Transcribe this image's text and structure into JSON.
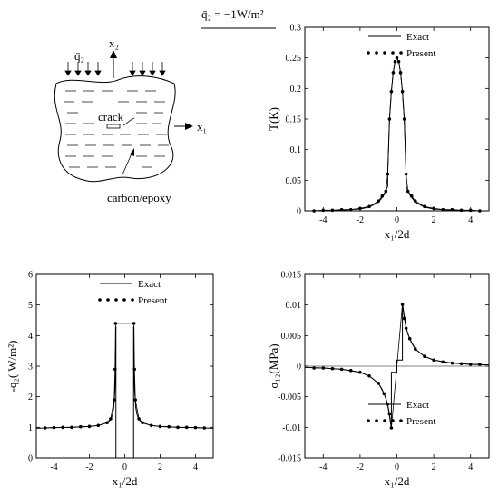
{
  "header_label": "q̄₂ = −1W/m²",
  "schematic": {
    "flux_label": "q̄₂",
    "x2_label": "x₂",
    "x1_label": "x₁",
    "crack_label": "crack",
    "material_label": "carbon/epoxy"
  },
  "chart_data": [
    {
      "type": "line",
      "xlabel": "x₁/2d",
      "ylabel": "T(K)",
      "xlim": [
        -5,
        5
      ],
      "ylim": [
        0,
        0.3
      ],
      "xticks": [
        -4,
        -2,
        0,
        2,
        4
      ],
      "yticks": [
        0,
        0.05,
        0.1,
        0.15,
        0.2,
        0.25,
        0.3
      ],
      "legend_position": "top-right",
      "series": [
        {
          "name": "Exact",
          "style": "solid",
          "x": [
            -4.5,
            -3,
            -2,
            -1.5,
            -1,
            -0.7,
            -0.5,
            -0.5,
            -0.4,
            -0.3,
            -0.2,
            -0.1,
            0,
            0.1,
            0.2,
            0.3,
            0.4,
            0.5,
            0.5,
            0.7,
            1,
            1.5,
            2,
            3,
            4.5
          ],
          "y": [
            0.0,
            0.001,
            0.003,
            0.006,
            0.014,
            0.026,
            0.04,
            0.06,
            0.15,
            0.195,
            0.226,
            0.244,
            0.25,
            0.244,
            0.226,
            0.195,
            0.15,
            0.06,
            0.04,
            0.026,
            0.014,
            0.006,
            0.003,
            0.001,
            0.0
          ]
        },
        {
          "name": "Present",
          "style": "dotted",
          "x": [
            -4.5,
            -4,
            -3.5,
            -3,
            -2.5,
            -2,
            -1.5,
            -1,
            -0.8,
            -0.6,
            -0.5,
            -0.4,
            -0.3,
            -0.2,
            -0.1,
            0,
            0.1,
            0.2,
            0.3,
            0.4,
            0.5,
            0.6,
            0.8,
            1,
            1.5,
            2,
            2.5,
            3,
            3.5,
            4,
            4.5
          ],
          "y": [
            0.0,
            0.001,
            0.001,
            0.002,
            0.002,
            0.004,
            0.007,
            0.016,
            0.024,
            0.032,
            0.06,
            0.15,
            0.195,
            0.226,
            0.244,
            0.25,
            0.244,
            0.226,
            0.195,
            0.15,
            0.06,
            0.032,
            0.024,
            0.016,
            0.007,
            0.004,
            0.002,
            0.002,
            0.001,
            0.001,
            0.0
          ]
        }
      ]
    },
    {
      "type": "line",
      "xlabel": "x₁/2d",
      "ylabel": "-q₂( W/m²)",
      "xlim": [
        -5,
        5
      ],
      "ylim": [
        0,
        6
      ],
      "xticks": [
        -4,
        -2,
        0,
        2,
        4
      ],
      "yticks": [
        0,
        1,
        2,
        3,
        4,
        5,
        6
      ],
      "legend_position": "top-right",
      "series": [
        {
          "name": "Exact",
          "style": "solid",
          "x": [
            -5,
            -4,
            -3,
            -2,
            -1.5,
            -1,
            -0.8,
            -0.7,
            -0.62,
            -0.56,
            -0.52,
            -0.5,
            -0.5,
            0.5,
            0.5,
            0.52,
            0.56,
            0.62,
            0.7,
            0.8,
            1,
            1.5,
            2,
            3,
            4,
            5
          ],
          "y": [
            0.97,
            0.99,
            1.0,
            1.03,
            1.06,
            1.15,
            1.25,
            1.4,
            1.65,
            2.2,
            3.2,
            4.3,
            0,
            0,
            4.3,
            3.2,
            2.2,
            1.65,
            1.4,
            1.25,
            1.15,
            1.06,
            1.03,
            1.0,
            0.99,
            0.97
          ]
        },
        {
          "name": "Present",
          "style": "dotted",
          "x": [
            -4.5,
            -4,
            -3.5,
            -3,
            -2.5,
            -2,
            -1.5,
            -1,
            -0.8,
            -0.6,
            -0.55,
            -0.52,
            0.52,
            0.55,
            0.6,
            0.8,
            1,
            1.5,
            2,
            2.5,
            3,
            3.5,
            4,
            4.5
          ],
          "y": [
            0.98,
            0.99,
            1.0,
            1.0,
            1.02,
            1.03,
            1.06,
            1.15,
            1.28,
            1.9,
            2.9,
            4.4,
            4.4,
            2.9,
            1.9,
            1.28,
            1.15,
            1.06,
            1.03,
            1.02,
            1.0,
            1.0,
            0.99,
            0.98
          ]
        }
      ]
    },
    {
      "type": "line",
      "xlabel": "x₁/2d",
      "ylabel": "σ₁₂(MPa)",
      "xlim": [
        -5,
        5
      ],
      "ylim": [
        -0.015,
        0.015
      ],
      "xticks": [
        -4,
        -2,
        0,
        2,
        4
      ],
      "yticks": [
        -0.015,
        -0.01,
        -0.005,
        0,
        0.005,
        0.01,
        0.015
      ],
      "legend_position": "bottom-right",
      "series": [
        {
          "name": "Exact",
          "style": "solid",
          "x": [
            -5,
            -4,
            -3,
            -2,
            -1.5,
            -1,
            -0.8,
            -0.6,
            -0.5,
            -0.4,
            -0.3,
            -0.3,
            0,
            0,
            0.3,
            0.3,
            0.4,
            0.5,
            0.6,
            0.8,
            1,
            1.5,
            2,
            3,
            4,
            5
          ],
          "y": [
            -0.0002,
            -0.0003,
            -0.0005,
            -0.001,
            -0.0016,
            -0.0028,
            -0.0038,
            -0.0052,
            -0.0064,
            -0.0082,
            -0.0103,
            -0.001,
            -0.001,
            0.001,
            0.001,
            0.0103,
            0.0082,
            0.0064,
            0.0052,
            0.0038,
            0.0028,
            0.0016,
            0.001,
            0.0005,
            0.0003,
            0.0002
          ]
        },
        {
          "name": "Present",
          "style": "dotted",
          "x": [
            -4.5,
            -4,
            -3.5,
            -3,
            -2.5,
            -2,
            -1.5,
            -1,
            -0.7,
            -0.5,
            -0.4,
            -0.3,
            0.3,
            0.4,
            0.5,
            0.7,
            1,
            1.5,
            2,
            2.5,
            3,
            3.5,
            4,
            4.5
          ],
          "y": [
            -0.0003,
            -0.0003,
            -0.0004,
            -0.0005,
            -0.0007,
            -0.001,
            -0.0016,
            -0.0028,
            -0.0045,
            -0.0062,
            -0.0078,
            -0.0101,
            0.0101,
            0.0078,
            0.0062,
            0.0045,
            0.0028,
            0.0016,
            0.001,
            0.0007,
            0.0005,
            0.0004,
            0.0003,
            0.0003
          ]
        }
      ]
    }
  ]
}
